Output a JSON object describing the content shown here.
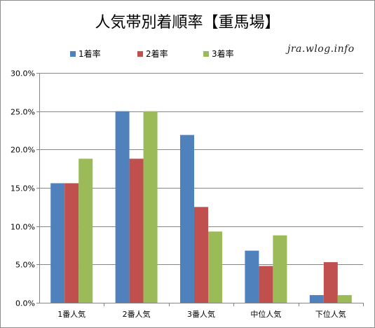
{
  "chart_data": {
    "type": "bar",
    "title": "人気帯別着順率【重馬場】",
    "watermark": "jra.wlog.info",
    "categories": [
      "1番人気",
      "2番人気",
      "3番人気",
      "中位人気",
      "下位人気"
    ],
    "series": [
      {
        "name": "1着率",
        "color": "#4f81bd",
        "values": [
          15.6,
          25.0,
          21.9,
          6.8,
          1.0
        ]
      },
      {
        "name": "2着率",
        "color": "#c0504d",
        "values": [
          15.6,
          18.8,
          12.5,
          4.8,
          5.3
        ]
      },
      {
        "name": "3着率",
        "color": "#9bbb59",
        "values": [
          18.8,
          25.0,
          9.3,
          8.8,
          1.0
        ]
      }
    ],
    "ylim": [
      0,
      30
    ],
    "yticks": [
      "0.0%",
      "5.0%",
      "10.0%",
      "15.0%",
      "20.0%",
      "25.0%",
      "30.0%"
    ],
    "grid": true,
    "legend": "top"
  }
}
